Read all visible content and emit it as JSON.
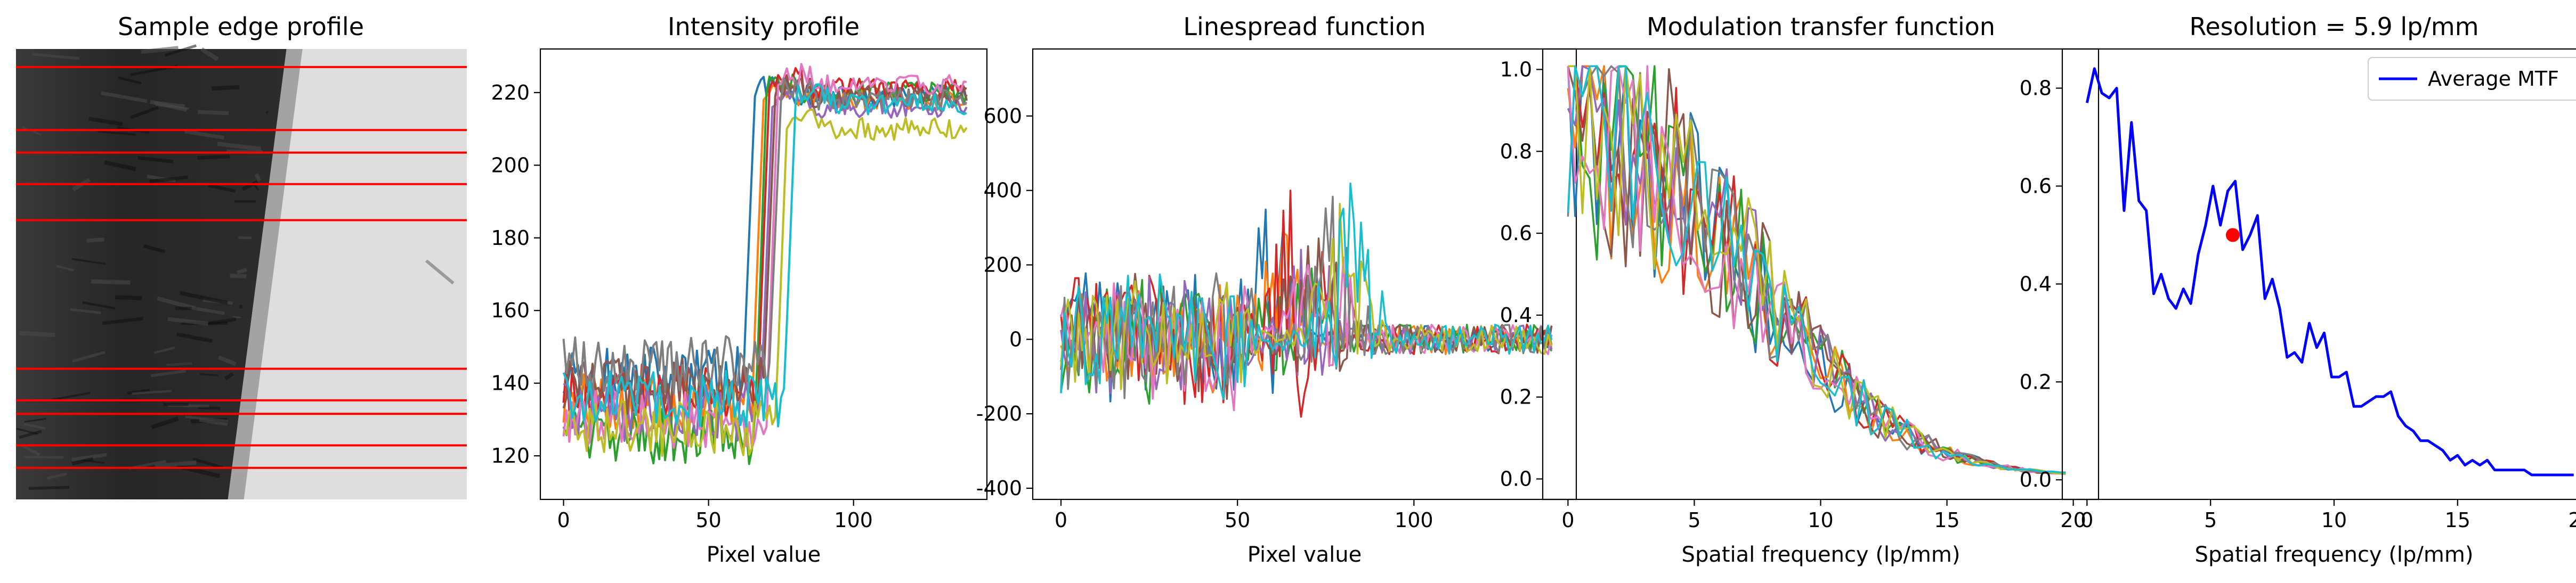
{
  "chart_data": [
    {
      "type": "image",
      "title": "Sample edge profile",
      "image": {
        "dark_color": "#262626",
        "light_color": "#dedede",
        "edge_fraction": [
          0.6,
          0.47
        ],
        "red_lines_fraction": [
          0.04,
          0.18,
          0.23,
          0.3,
          0.38,
          0.71,
          0.78,
          0.81,
          0.88,
          0.93
        ],
        "line_color": "#ff0000"
      }
    },
    {
      "type": "line",
      "title": "Intensity profile",
      "xlabel": "Pixel value",
      "ylabel": "",
      "xlim": [
        -8,
        146
      ],
      "ylim": [
        108,
        232
      ],
      "xticks": [
        0,
        50,
        100
      ],
      "yticks": [
        120,
        140,
        160,
        180,
        200,
        220
      ],
      "series_params": {
        "edges": [
          63,
          66,
          67,
          68,
          69,
          70,
          71,
          72,
          74,
          77
        ],
        "lows": [
          142,
          135,
          125,
          138,
          132,
          139,
          130,
          145,
          128,
          136
        ],
        "highs": [
          219,
          218,
          220,
          221,
          216,
          219,
          222,
          218,
          210,
          217
        ],
        "noise_low": 8,
        "noise_high": 3,
        "n": 140
      }
    },
    {
      "type": "line",
      "title": "Linespread function",
      "xlabel": "Pixel value",
      "ylabel": "",
      "xlim": [
        -8,
        146
      ],
      "ylim": [
        -430,
        780
      ],
      "xticks": [
        0,
        50,
        100
      ],
      "yticks": [
        -400,
        -200,
        0,
        200,
        400,
        600
      ],
      "series_params": {
        "peaks": [
          600,
          450,
          520,
          740,
          560,
          680,
          640,
          610,
          550,
          620
        ],
        "noise_left": 160,
        "noise_right": 40,
        "n": 140
      }
    },
    {
      "type": "line",
      "title": "Modulation transfer function",
      "xlabel": "Spatial frequency (lp/mm)",
      "ylabel": "",
      "xlim": [
        -1,
        21
      ],
      "ylim": [
        -0.05,
        1.05
      ],
      "xticks": [
        0,
        5,
        10,
        15,
        20
      ],
      "yticks": [
        0.0,
        0.2,
        0.4,
        0.6,
        0.8,
        1.0
      ],
      "series_params": {
        "n": 70,
        "xmax": 19.7
      }
    },
    {
      "type": "line",
      "title": "Resolution = 5.9 lp/mm",
      "xlabel": "Spatial frequency (lp/mm)",
      "ylabel": "",
      "xlim": [
        -1,
        21
      ],
      "ylim": [
        -0.04,
        0.88
      ],
      "xticks": [
        0,
        5,
        10,
        15,
        20
      ],
      "yticks": [
        0.0,
        0.2,
        0.4,
        0.6,
        0.8
      ],
      "legend": {
        "position": "top-right",
        "label": "Average MTF"
      },
      "series": [
        {
          "name": "Average MTF",
          "color": "#0000ff",
          "x": [
            0.0,
            0.3,
            0.6,
            0.9,
            1.2,
            1.5,
            1.8,
            2.1,
            2.4,
            2.7,
            3.0,
            3.3,
            3.6,
            3.9,
            4.2,
            4.5,
            4.8,
            5.1,
            5.4,
            5.7,
            6.0,
            6.3,
            6.6,
            6.9,
            7.2,
            7.5,
            7.8,
            8.1,
            8.4,
            8.7,
            9.0,
            9.3,
            9.6,
            9.9,
            10.2,
            10.5,
            10.8,
            11.1,
            11.4,
            11.7,
            12.0,
            12.3,
            12.6,
            12.9,
            13.2,
            13.5,
            13.8,
            14.1,
            14.4,
            14.7,
            15.0,
            15.3,
            15.6,
            15.9,
            16.2,
            16.5,
            16.8,
            17.1,
            17.4,
            17.7,
            18.0,
            18.3,
            18.6,
            18.9,
            19.2,
            19.5,
            19.7
          ],
          "y": [
            0.77,
            0.84,
            0.79,
            0.78,
            0.8,
            0.55,
            0.73,
            0.57,
            0.55,
            0.38,
            0.42,
            0.37,
            0.35,
            0.39,
            0.36,
            0.46,
            0.52,
            0.6,
            0.52,
            0.59,
            0.61,
            0.47,
            0.5,
            0.54,
            0.37,
            0.41,
            0.35,
            0.25,
            0.26,
            0.24,
            0.32,
            0.27,
            0.3,
            0.21,
            0.21,
            0.22,
            0.15,
            0.15,
            0.16,
            0.17,
            0.17,
            0.18,
            0.13,
            0.11,
            0.1,
            0.08,
            0.08,
            0.07,
            0.06,
            0.04,
            0.05,
            0.03,
            0.04,
            0.03,
            0.04,
            0.02,
            0.02,
            0.02,
            0.02,
            0.02,
            0.01,
            0.01,
            0.01,
            0.01,
            0.01,
            0.01,
            0.01
          ]
        }
      ],
      "marker": {
        "x": 5.9,
        "y": 0.5,
        "color": "#ff0000"
      }
    }
  ],
  "palette": [
    "#1f77b4",
    "#ff7f0e",
    "#2ca02c",
    "#d62728",
    "#9467bd",
    "#8c564b",
    "#e377c2",
    "#7f7f7f",
    "#bcbd22",
    "#17becf"
  ]
}
